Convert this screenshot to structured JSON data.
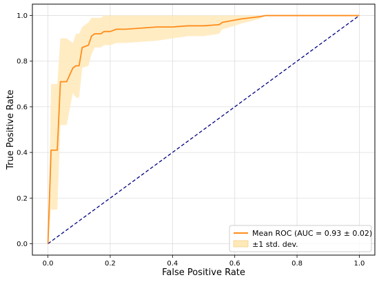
{
  "chart_data": {
    "type": "line",
    "title": "",
    "xlabel": "False Positive Rate",
    "ylabel": "True Positive Rate",
    "xlim": [
      -0.05,
      1.05
    ],
    "ylim": [
      -0.05,
      1.05
    ],
    "xticks": [
      "0.0",
      "0.2",
      "0.4",
      "0.6",
      "0.8",
      "1.0"
    ],
    "yticks": [
      "0.0",
      "0.2",
      "0.4",
      "0.6",
      "0.8",
      "1.0"
    ],
    "grid": true,
    "legend_position": "bottom-right",
    "series": [
      {
        "name": "Mean ROC (AUC = 0.93 ± 0.02)",
        "color": "#ff8c1a",
        "x": [
          0.0,
          0.01,
          0.03,
          0.04,
          0.06,
          0.08,
          0.09,
          0.1,
          0.11,
          0.13,
          0.14,
          0.15,
          0.17,
          0.18,
          0.2,
          0.22,
          0.25,
          0.3,
          0.35,
          0.4,
          0.45,
          0.5,
          0.55,
          0.56,
          0.6,
          0.62,
          0.65,
          0.68,
          0.7,
          0.75,
          0.8,
          0.9,
          1.0
        ],
        "y": [
          0.0,
          0.41,
          0.41,
          0.71,
          0.71,
          0.77,
          0.78,
          0.78,
          0.86,
          0.87,
          0.91,
          0.92,
          0.92,
          0.93,
          0.93,
          0.94,
          0.94,
          0.945,
          0.95,
          0.95,
          0.955,
          0.955,
          0.96,
          0.97,
          0.98,
          0.985,
          0.99,
          0.995,
          1.0,
          1.0,
          1.0,
          1.0,
          1.0
        ]
      },
      {
        "name": "±1 std. dev.",
        "type": "band",
        "color": "#ffe9b8",
        "x": [
          0.0,
          0.01,
          0.03,
          0.04,
          0.06,
          0.08,
          0.09,
          0.1,
          0.11,
          0.13,
          0.14,
          0.15,
          0.17,
          0.18,
          0.2,
          0.22,
          0.25,
          0.3,
          0.35,
          0.4,
          0.45,
          0.5,
          0.55,
          0.56,
          0.6,
          0.62,
          0.65,
          0.68,
          0.7,
          0.75,
          0.8,
          0.9,
          1.0
        ],
        "upper": [
          0.0,
          0.7,
          0.7,
          0.9,
          0.9,
          0.88,
          0.92,
          0.92,
          0.95,
          0.97,
          0.99,
          0.99,
          0.99,
          1.0,
          1.0,
          1.0,
          1.0,
          1.0,
          1.0,
          1.0,
          1.0,
          1.0,
          1.0,
          1.0,
          1.0,
          1.0,
          1.0,
          1.0,
          1.0,
          1.0,
          1.0,
          1.0,
          1.0
        ],
        "lower": [
          0.0,
          0.15,
          0.15,
          0.52,
          0.52,
          0.66,
          0.64,
          0.64,
          0.77,
          0.78,
          0.83,
          0.86,
          0.86,
          0.87,
          0.87,
          0.88,
          0.88,
          0.885,
          0.89,
          0.9,
          0.91,
          0.91,
          0.92,
          0.94,
          0.955,
          0.965,
          0.975,
          0.985,
          1.0,
          1.0,
          1.0,
          1.0,
          1.0
        ]
      },
      {
        "name": "",
        "type": "reference",
        "color": "#000080",
        "x": [
          0.0,
          1.0
        ],
        "y": [
          0.0,
          1.0
        ]
      }
    ]
  }
}
